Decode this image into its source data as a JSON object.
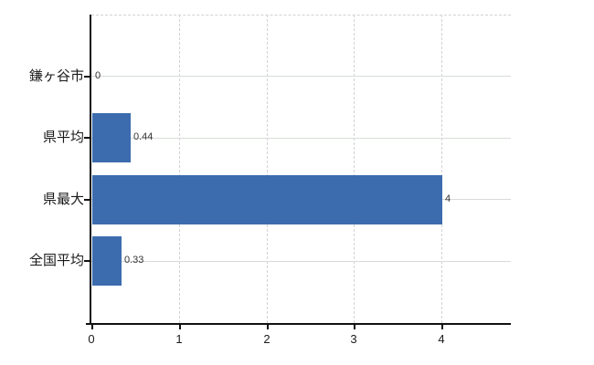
{
  "chart_data": {
    "type": "bar",
    "orientation": "horizontal",
    "title": "",
    "xlabel": "",
    "ylabel": "",
    "categories": [
      "鎌ヶ谷市",
      "県平均",
      "県最大",
      "全国平均"
    ],
    "values": [
      0,
      0.44,
      4,
      0.33
    ],
    "value_labels": [
      "0",
      "0.44",
      "4",
      "0.33"
    ],
    "x_ticks": [
      0,
      1,
      2,
      3,
      4
    ],
    "x_tick_labels": [
      "0",
      "1",
      "2",
      "3",
      "4"
    ],
    "xlim": [
      0,
      4.79
    ],
    "grid": "on",
    "legend": "none",
    "gridline_style": {
      "horizontal": "solid",
      "vertical": "dashed",
      "plot_top_border": "dashed"
    },
    "colors": {
      "bar": "#3c6cae",
      "axis": "#111111",
      "grid_solid": "#d6dcd6",
      "grid_dashed": "#d2d2d2",
      "category_text": "#1a1a1a",
      "value_text": "#333333",
      "tick_text": "#1a1a1a",
      "background": "#ffffff"
    }
  }
}
